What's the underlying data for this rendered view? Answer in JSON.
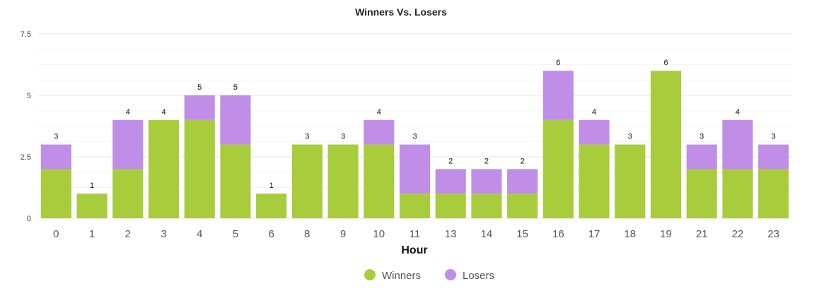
{
  "chart_data": {
    "type": "bar",
    "stacked": true,
    "title": "Winners Vs. Losers",
    "xlabel": "Hour",
    "ylabel": "",
    "categories": [
      "0",
      "1",
      "2",
      "3",
      "4",
      "5",
      "6",
      "8",
      "9",
      "10",
      "11",
      "13",
      "14",
      "15",
      "16",
      "17",
      "18",
      "19",
      "21",
      "22",
      "23"
    ],
    "series": [
      {
        "name": "Winners",
        "color": "#a8cc3c",
        "values": [
          2,
          1,
          2,
          4,
          4,
          3,
          1,
          3,
          3,
          3,
          1,
          1,
          1,
          1,
          4,
          3,
          3,
          6,
          2,
          2,
          2
        ]
      },
      {
        "name": "Losers",
        "color": "#c08ee6",
        "values": [
          1,
          0,
          2,
          0,
          1,
          2,
          0,
          0,
          0,
          1,
          2,
          1,
          1,
          1,
          2,
          1,
          0,
          0,
          1,
          2,
          1
        ]
      }
    ],
    "totals": [
      3,
      1,
      4,
      4,
      5,
      5,
      1,
      3,
      3,
      4,
      3,
      2,
      2,
      2,
      6,
      4,
      3,
      6,
      3,
      4,
      3
    ],
    "ylim": [
      0,
      7.5
    ],
    "yticks": [
      "0",
      "2.5",
      "5",
      "7.5"
    ],
    "grid": true,
    "legend_position": "bottom-center"
  }
}
